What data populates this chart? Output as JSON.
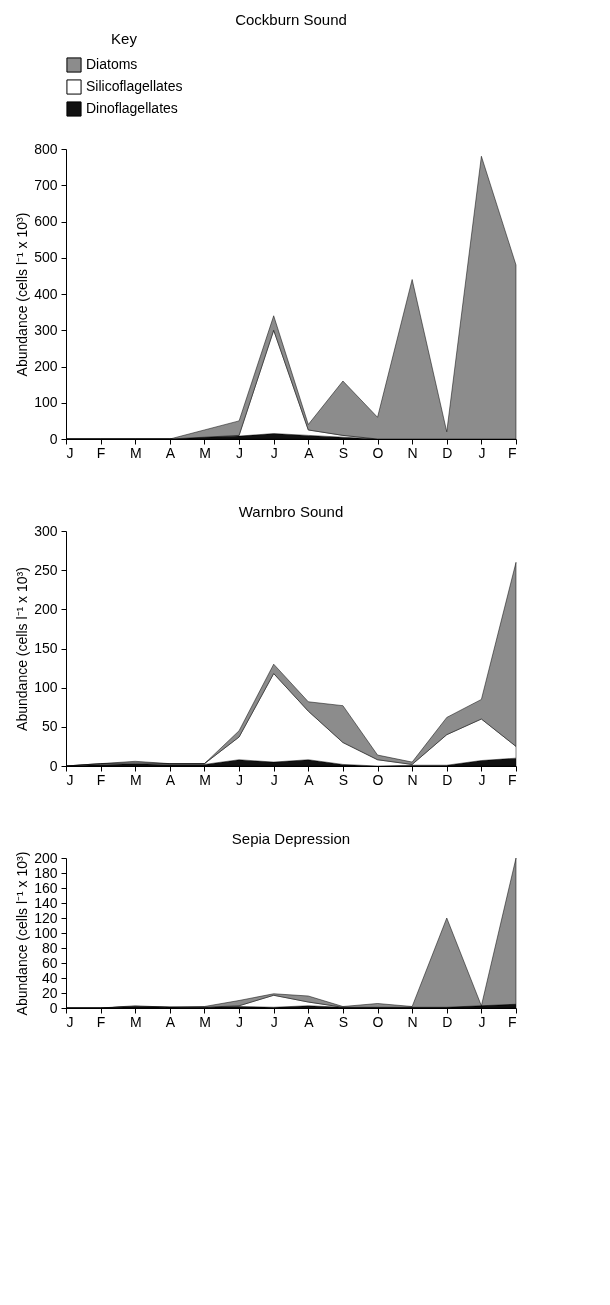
{
  "chart_data": [
    {
      "type": "area",
      "title": "Cockburn Sound",
      "ylabel": "Abundance (cells l⁻¹ x 10³)",
      "legend_title": "Key",
      "legend": "top",
      "stacked": true,
      "categories": [
        "J",
        "F",
        "M",
        "A",
        "M",
        "J",
        "J",
        "A",
        "S",
        "O",
        "N",
        "D",
        "J",
        "F"
      ],
      "ylim": [
        0,
        800
      ],
      "yticks": [
        0,
        100,
        200,
        300,
        400,
        500,
        600,
        700,
        800
      ],
      "grid": false,
      "series": [
        {
          "name": "Dinoflagellates",
          "color": "#111111",
          "values": [
            0,
            0,
            0,
            0,
            5,
            8,
            15,
            10,
            5,
            0,
            0,
            0,
            0,
            0
          ]
        },
        {
          "name": "Silicoflagellates",
          "color": "#ffffff",
          "values": [
            0,
            0,
            0,
            0,
            0,
            2,
            285,
            15,
            5,
            0,
            0,
            0,
            0,
            0
          ]
        },
        {
          "name": "Diatoms",
          "color": "#8c8c8c",
          "values": [
            0,
            0,
            0,
            0,
            20,
            40,
            40,
            15,
            150,
            60,
            440,
            20,
            780,
            480
          ]
        }
      ]
    },
    {
      "type": "area",
      "title": "Warnbro Sound",
      "ylabel": "Abundance (cells l⁻¹ x 10³)",
      "stacked": true,
      "categories": [
        "J",
        "F",
        "M",
        "A",
        "M",
        "J",
        "J",
        "A",
        "S",
        "O",
        "N",
        "D",
        "J",
        "F"
      ],
      "ylim": [
        0,
        300
      ],
      "yticks": [
        0,
        50,
        100,
        150,
        200,
        250,
        300
      ],
      "grid": false,
      "series": [
        {
          "color": "#111111",
          "values": [
            0,
            2,
            3,
            2,
            2,
            8,
            5,
            8,
            2,
            0,
            1,
            1,
            7,
            10
          ]
        },
        {
          "color": "#ffffff",
          "values": [
            0,
            1,
            1,
            1,
            1,
            29,
            113,
            62,
            28,
            8,
            1,
            39,
            53,
            15
          ]
        },
        {
          "color": "#8c8c8c",
          "values": [
            0,
            0,
            2,
            0,
            0,
            8,
            12,
            12,
            47,
            6,
            3,
            22,
            25,
            235
          ]
        }
      ]
    },
    {
      "type": "area",
      "title": "Sepia Depression",
      "ylabel": "Abundance (cells l⁻¹ x 10³)",
      "stacked": true,
      "categories": [
        "J",
        "F",
        "M",
        "A",
        "M",
        "J",
        "J",
        "A",
        "S",
        "O",
        "N",
        "D",
        "J",
        "F"
      ],
      "ylim": [
        0,
        200
      ],
      "yticks": [
        0,
        20,
        40,
        60,
        80,
        100,
        120,
        140,
        160,
        180,
        200
      ],
      "grid": false,
      "series": [
        {
          "color": "#111111",
          "values": [
            0,
            0,
            2,
            1,
            1,
            2,
            1,
            3,
            1,
            1,
            1,
            1,
            3,
            5
          ]
        },
        {
          "color": "#ffffff",
          "values": [
            0,
            0,
            0,
            0,
            0,
            1,
            16,
            5,
            0,
            0,
            0,
            0,
            0,
            0
          ]
        },
        {
          "color": "#8c8c8c",
          "values": [
            0,
            0,
            1,
            0,
            1,
            7,
            2,
            8,
            1,
            5,
            1,
            119,
            0,
            195
          ]
        }
      ]
    }
  ]
}
